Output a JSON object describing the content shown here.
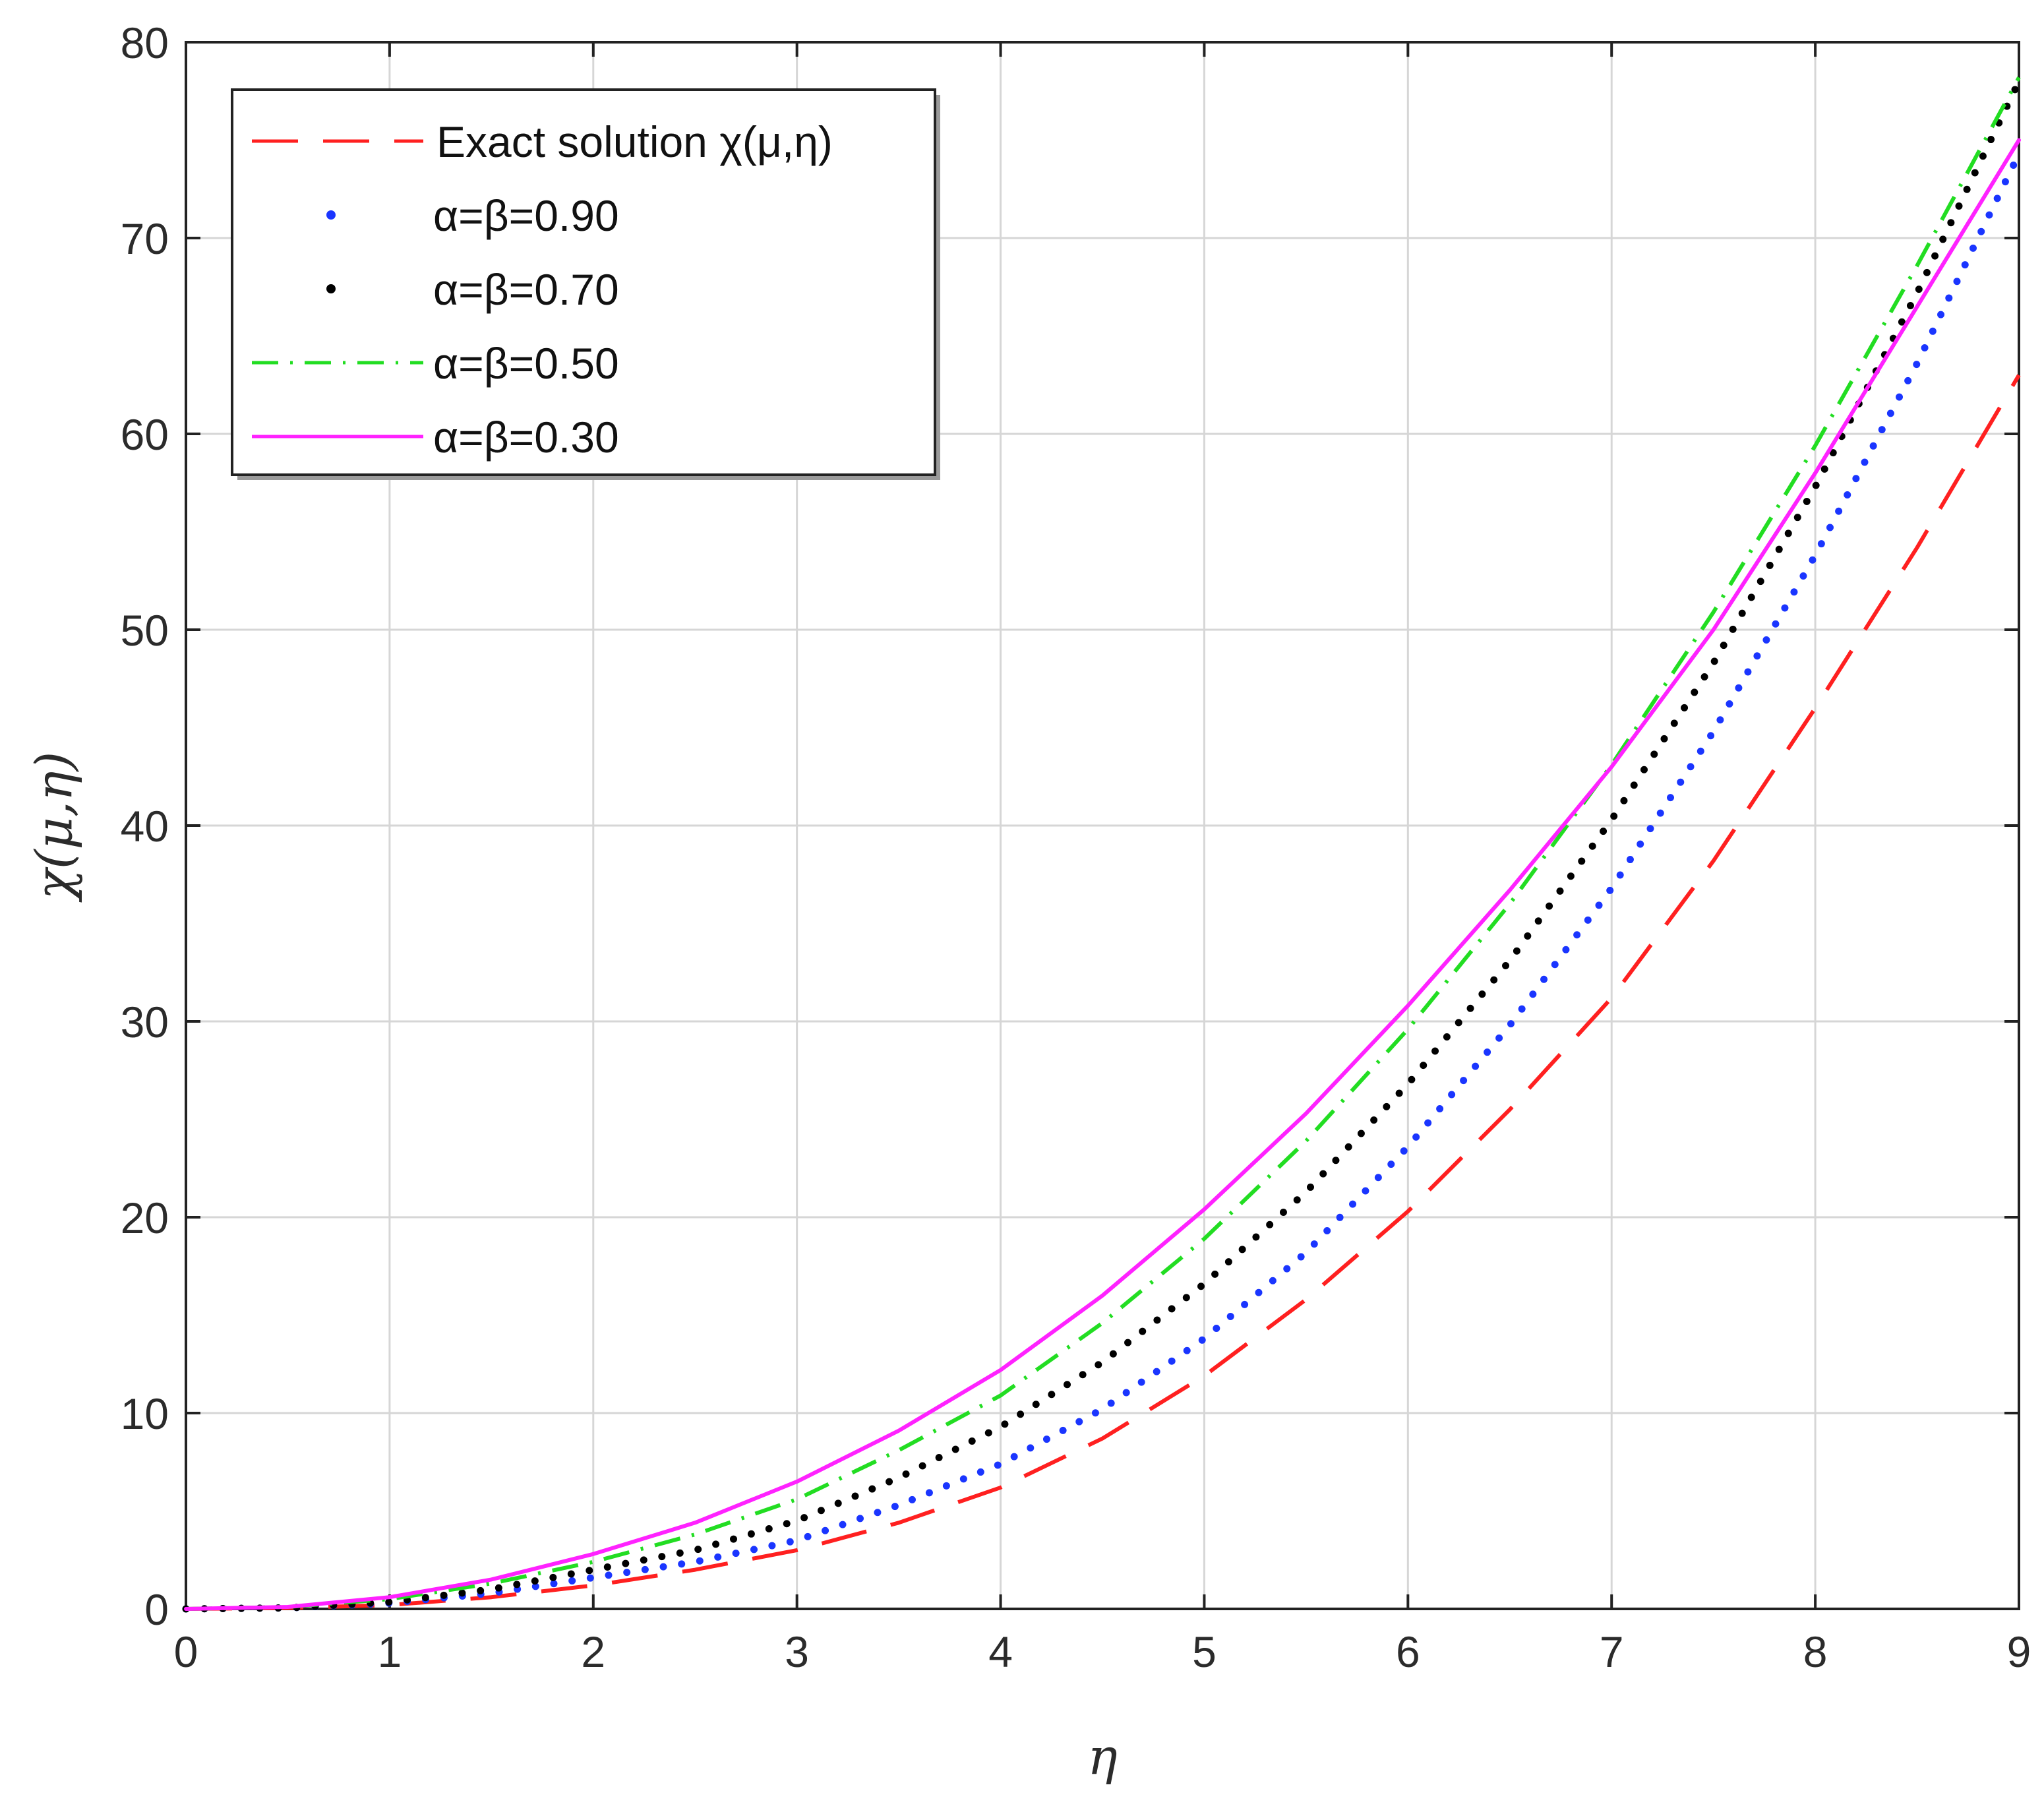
{
  "chart_data": {
    "type": "line",
    "title": "",
    "xlabel": "η",
    "ylabel": "χ(μ,η)",
    "xlim": [
      0,
      9
    ],
    "ylim": [
      0,
      80
    ],
    "xticks": [
      "0",
      "1",
      "2",
      "3",
      "4",
      "5",
      "6",
      "7",
      "8",
      "9"
    ],
    "yticks": [
      "0",
      "10",
      "20",
      "30",
      "40",
      "50",
      "60",
      "70",
      "80"
    ],
    "grid": true,
    "legend_position": "top-left",
    "x": [
      0,
      0.5,
      1,
      1.5,
      2,
      2.5,
      3,
      3.5,
      4,
      4.5,
      5,
      5.5,
      6,
      6.5,
      7,
      7.5,
      8,
      8.5,
      9
    ],
    "series": [
      {
        "name": "Exact solution χ(μ,η)",
        "color": "#ff2020",
        "style": "dashed",
        "values": [
          0,
          0.05,
          0.2,
          0.6,
          1.2,
          2.0,
          3.0,
          4.4,
          6.2,
          8.7,
          11.9,
          15.8,
          20.3,
          25.5,
          31.2,
          38.2,
          46.0,
          54.2,
          63.0
        ]
      },
      {
        "name": "α=β=0.90",
        "color": "#1a35ff",
        "style": "dotted",
        "values": [
          0,
          0.05,
          0.3,
          0.8,
          1.6,
          2.4,
          3.5,
          5.3,
          7.4,
          10.2,
          13.8,
          18.2,
          23.6,
          29.8,
          36.8,
          44.8,
          53.8,
          63.6,
          74.3
        ]
      },
      {
        "name": "α=β=0.70",
        "color": "#000000",
        "style": "dotted",
        "values": [
          0,
          0.05,
          0.35,
          1.0,
          2.0,
          3.0,
          4.5,
          6.7,
          9.3,
          12.6,
          16.6,
          21.3,
          26.8,
          33.1,
          40.3,
          48.3,
          57.3,
          67.2,
          78.0
        ]
      },
      {
        "name": "α=β=0.50",
        "color": "#22dd22",
        "style": "dashdot",
        "values": [
          0,
          0.1,
          0.5,
          1.3,
          2.4,
          3.8,
          5.6,
          8.1,
          10.9,
          14.6,
          18.9,
          23.9,
          29.6,
          36.0,
          43.1,
          50.9,
          59.4,
          68.6,
          78.2
        ]
      },
      {
        "name": "α=β=0.30",
        "color": "#ff22ff",
        "style": "solid",
        "values": [
          0,
          0.1,
          0.6,
          1.5,
          2.8,
          4.4,
          6.5,
          9.1,
          12.2,
          16.0,
          20.4,
          25.3,
          30.8,
          36.7,
          43.0,
          50.0,
          58.0,
          66.5,
          75.0
        ]
      }
    ]
  }
}
